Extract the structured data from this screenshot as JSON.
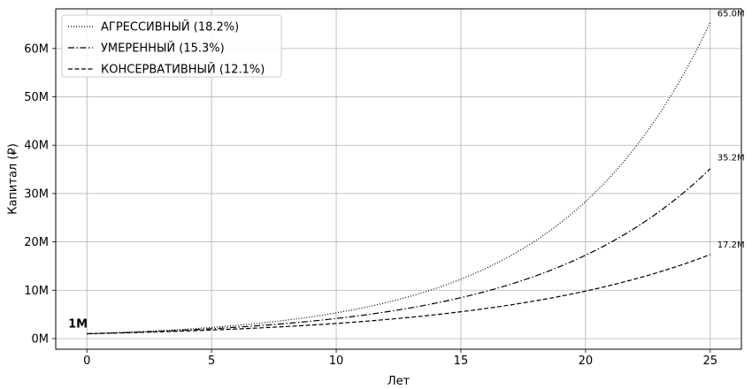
{
  "chart_data": {
    "type": "line",
    "title": "",
    "xlabel": "Лет",
    "ylabel": "Капитал (₽)",
    "xlim": [
      -1.25,
      26.25
    ],
    "ylim": [
      -2.2,
      68.2
    ],
    "x_ticks": [
      0,
      5,
      10,
      15,
      20,
      25
    ],
    "x_tick_labels": [
      "0",
      "5",
      "10",
      "15",
      "20",
      "25"
    ],
    "y_ticks": [
      0,
      10,
      20,
      30,
      40,
      50,
      60
    ],
    "y_tick_labels": [
      "0M",
      "10M",
      "20M",
      "30M",
      "40M",
      "50M",
      "60M"
    ],
    "grid": true,
    "legend_position": "top-left",
    "start_label": "1M",
    "initial_capital_m": 1,
    "series": [
      {
        "name": "АГРЕССИВНЫЙ (18.2%)",
        "rate": 0.182,
        "style": "dotted",
        "color": "#000000",
        "end_value": 65.0,
        "end_label": "65.0M"
      },
      {
        "name": "УМЕРЕННЫЙ (15.3%)",
        "rate": 0.153,
        "style": "dashdot",
        "color": "#000000",
        "end_value": 35.2,
        "end_label": "35.2M"
      },
      {
        "name": "КОНСЕРВАТИВНЫЙ (12.1%)",
        "rate": 0.121,
        "style": "dashed",
        "color": "#000000",
        "end_value": 17.2,
        "end_label": "17.2M"
      }
    ],
    "x": [
      0,
      1,
      2,
      3,
      4,
      5,
      6,
      7,
      8,
      9,
      10,
      11,
      12,
      13,
      14,
      15,
      16,
      17,
      18,
      19,
      20,
      21,
      22,
      23,
      24,
      25
    ]
  }
}
